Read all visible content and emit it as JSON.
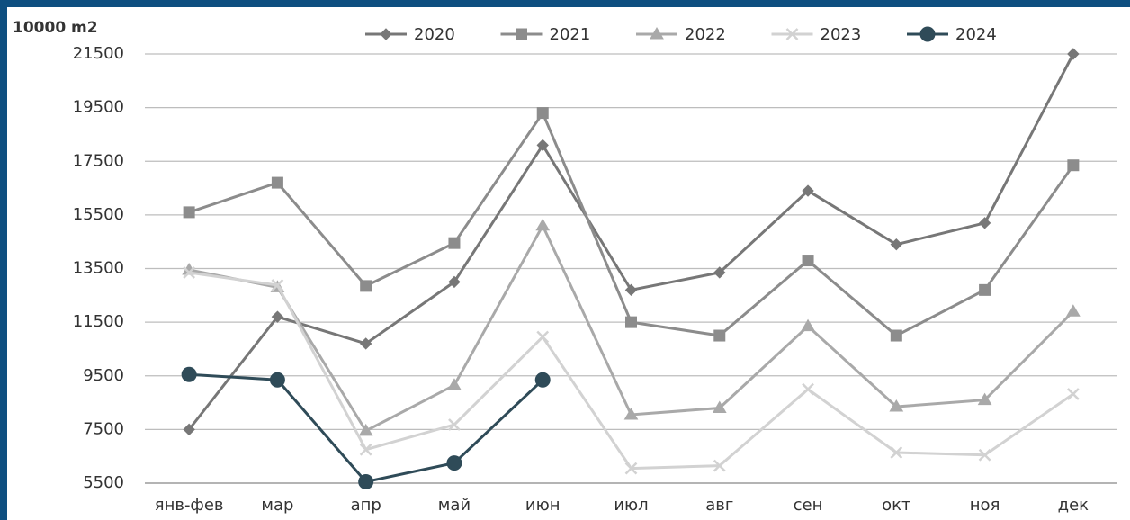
{
  "chart_data": {
    "type": "line",
    "y_label": "10000 m2",
    "categories": [
      "янв-фев",
      "мар",
      "апр",
      "май",
      "июн",
      "июл",
      "авг",
      "сен",
      "окт",
      "ноя",
      "дек"
    ],
    "series": [
      {
        "name": "2020",
        "color": "#777777",
        "marker": "diamond",
        "values": [
          7500,
          11700,
          10700,
          13000,
          18100,
          12700,
          13350,
          16400,
          14400,
          15200,
          21500
        ]
      },
      {
        "name": "2021",
        "color": "#8c8c8c",
        "marker": "square",
        "values": [
          15600,
          16700,
          12850,
          14450,
          19300,
          11500,
          11000,
          13800,
          11000,
          12700,
          17350
        ]
      },
      {
        "name": "2022",
        "color": "#a9a9a9",
        "marker": "triangle",
        "values": [
          13450,
          12800,
          7450,
          9150,
          15100,
          8050,
          8300,
          11350,
          8350,
          8600,
          11900
        ]
      },
      {
        "name": "2023",
        "color": "#d2d2d2",
        "marker": "x",
        "values": [
          13350,
          12880,
          6750,
          7680,
          10950,
          6050,
          6150,
          9000,
          6640,
          6550,
          8820
        ]
      },
      {
        "name": "2024",
        "color": "#2f4b58",
        "marker": "circle",
        "values": [
          9550,
          9350,
          5550,
          6250,
          9350,
          null,
          null,
          null,
          null,
          null,
          null
        ]
      }
    ],
    "ylim": [
      5500,
      21500
    ],
    "yticks": [
      5500,
      7500,
      9500,
      11500,
      13500,
      15500,
      17500,
      19500,
      21500
    ],
    "grid": true,
    "legend_position": "top"
  }
}
